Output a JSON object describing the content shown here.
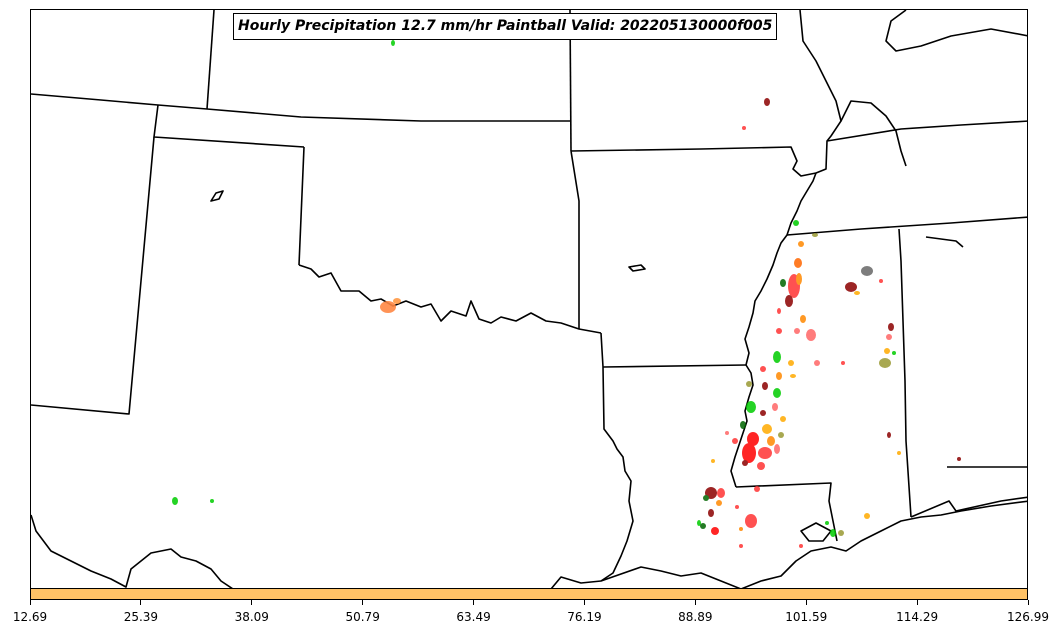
{
  "map": {
    "title": "Hourly Precipitation 12.7 mm/hr Paintball Valid: 202205130000f005",
    "colorbar": {
      "color": "#FFC266",
      "ticks": [
        "12.69",
        "25.39",
        "38.09",
        "50.79",
        "63.49",
        "76.19",
        "88.89",
        "101.59",
        "114.29",
        "126.99"
      ]
    },
    "paint_colors": [
      "#ff0000",
      "#00cc00",
      "#ff8800",
      "#8b0000",
      "#006400",
      "#ff6666",
      "#ffaa00",
      "#999933",
      "#000000"
    ]
  }
}
